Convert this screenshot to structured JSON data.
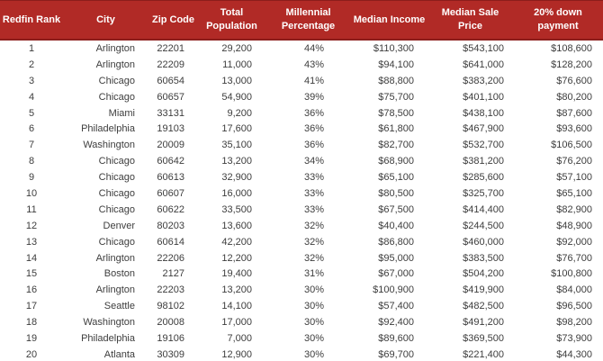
{
  "colors": {
    "header_bg": "#b12a26",
    "header_border": "#8c1d1b",
    "body_text": "#3d3d3d"
  },
  "chart_data": {
    "type": "table",
    "columns": [
      "Redfin Rank",
      "City",
      "Zip Code",
      "Total Population",
      "Millennial Percentage",
      "Median Income",
      "Median Sale Price",
      "20% down payment"
    ],
    "rows": [
      [
        "1",
        "Arlington",
        "22201",
        "29,200",
        "44%",
        "$110,300",
        "$543,100",
        "$108,600"
      ],
      [
        "2",
        "Arlington",
        "22209",
        "11,000",
        "43%",
        "$94,100",
        "$641,000",
        "$128,200"
      ],
      [
        "3",
        "Chicago",
        "60654",
        "13,000",
        "41%",
        "$88,800",
        "$383,200",
        "$76,600"
      ],
      [
        "4",
        "Chicago",
        "60657",
        "54,900",
        "39%",
        "$75,700",
        "$401,100",
        "$80,200"
      ],
      [
        "5",
        "Miami",
        "33131",
        "9,200",
        "36%",
        "$78,500",
        "$438,100",
        "$87,600"
      ],
      [
        "6",
        "Philadelphia",
        "19103",
        "17,600",
        "36%",
        "$61,800",
        "$467,900",
        "$93,600"
      ],
      [
        "7",
        "Washington",
        "20009",
        "35,100",
        "36%",
        "$82,700",
        "$532,700",
        "$106,500"
      ],
      [
        "8",
        "Chicago",
        "60642",
        "13,200",
        "34%",
        "$68,900",
        "$381,200",
        "$76,200"
      ],
      [
        "9",
        "Chicago",
        "60613",
        "32,900",
        "33%",
        "$65,100",
        "$285,600",
        "$57,100"
      ],
      [
        "10",
        "Chicago",
        "60607",
        "16,000",
        "33%",
        "$80,500",
        "$325,700",
        "$65,100"
      ],
      [
        "11",
        "Chicago",
        "60622",
        "33,500",
        "33%",
        "$67,500",
        "$414,400",
        "$82,900"
      ],
      [
        "12",
        "Denver",
        "80203",
        "13,600",
        "32%",
        "$40,400",
        "$244,500",
        "$48,900"
      ],
      [
        "13",
        "Chicago",
        "60614",
        "42,200",
        "32%",
        "$86,800",
        "$460,000",
        "$92,000"
      ],
      [
        "14",
        "Arlington",
        "22206",
        "12,200",
        "32%",
        "$95,000",
        "$383,500",
        "$76,700"
      ],
      [
        "15",
        "Boston",
        "2127",
        "19,400",
        "31%",
        "$67,000",
        "$504,200",
        "$100,800"
      ],
      [
        "16",
        "Arlington",
        "22203",
        "13,200",
        "30%",
        "$100,900",
        "$419,900",
        "$84,000"
      ],
      [
        "17",
        "Seattle",
        "98102",
        "14,100",
        "30%",
        "$57,400",
        "$482,500",
        "$96,500"
      ],
      [
        "18",
        "Washington",
        "20008",
        "17,000",
        "30%",
        "$92,400",
        "$491,200",
        "$98,200"
      ],
      [
        "19",
        "Philadelphia",
        "19106",
        "7,000",
        "30%",
        "$89,600",
        "$369,500",
        "$73,900"
      ],
      [
        "20",
        "Atlanta",
        "30309",
        "12,900",
        "30%",
        "$69,700",
        "$221,400",
        "$44,300"
      ]
    ]
  }
}
